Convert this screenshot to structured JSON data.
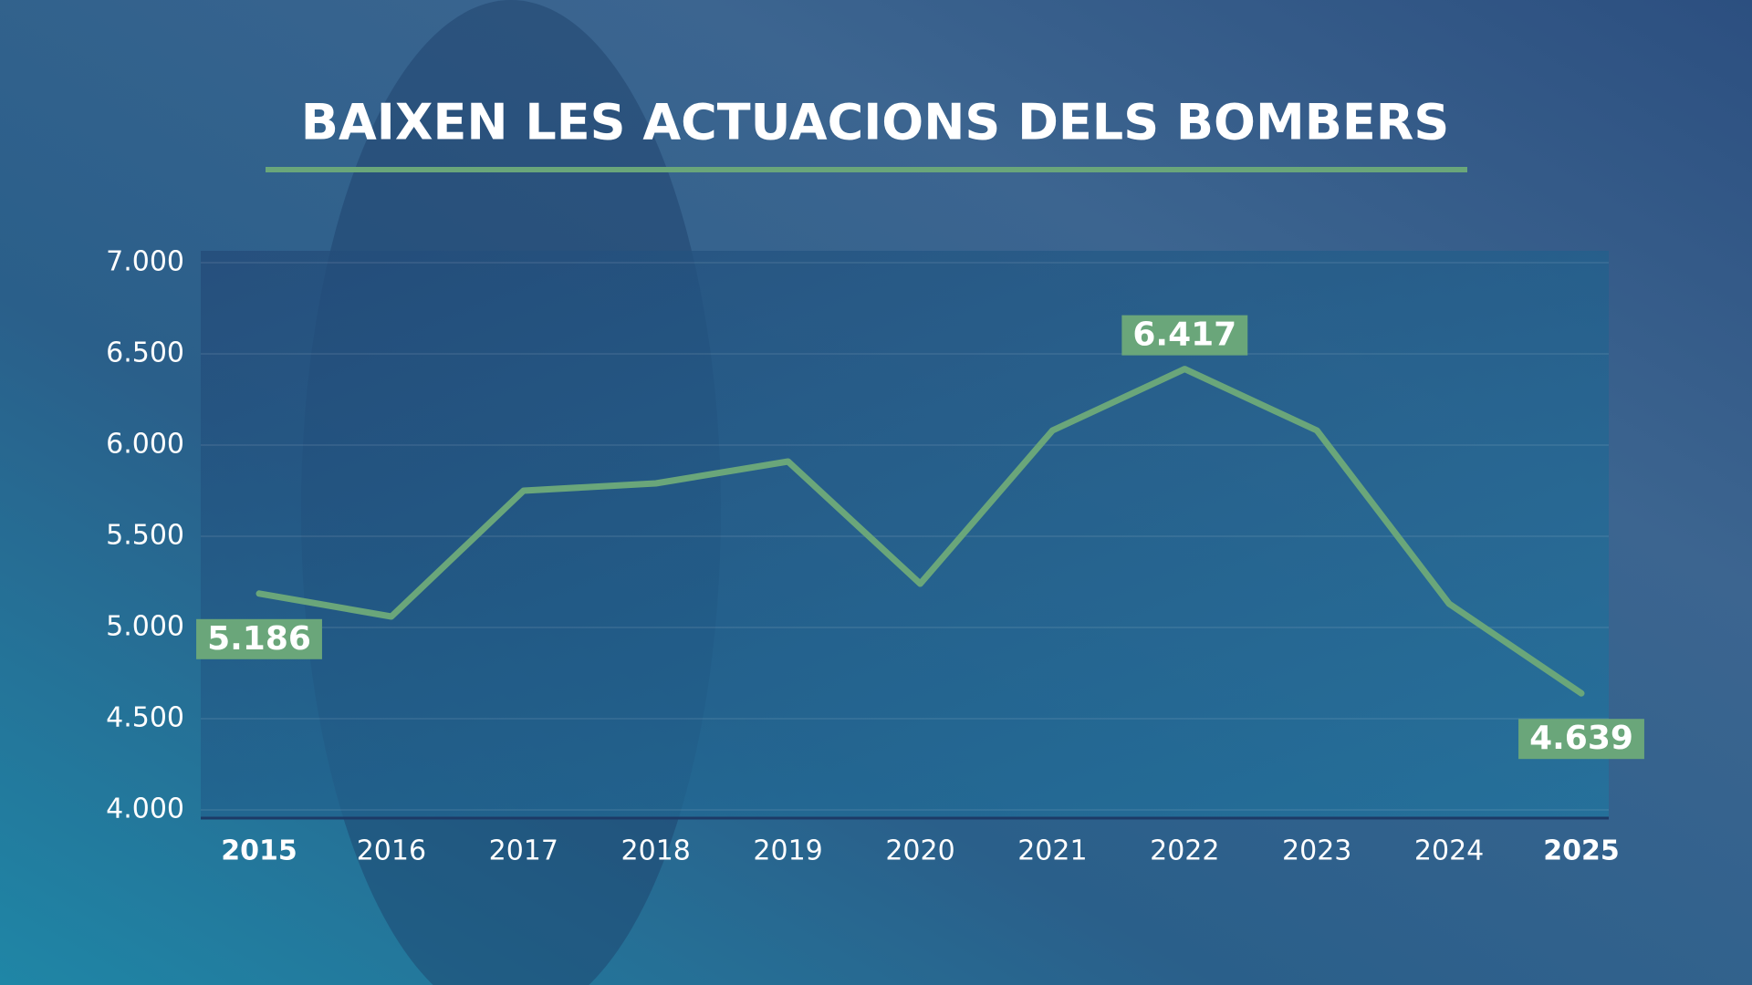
{
  "chart_data": {
    "type": "line",
    "title": "BAIXEN LES ACTUACIONS DELS BOMBERS",
    "categories": [
      "2015",
      "2016",
      "2017",
      "2018",
      "2019",
      "2020",
      "2021",
      "2022",
      "2023",
      "2024",
      "2025"
    ],
    "series": [
      {
        "color": "#6aa67a",
        "values": [
          5186,
          5060,
          5750,
          5790,
          5910,
          5240,
          6080,
          6417,
          6080,
          5130,
          4639
        ],
        "value_labels": [
          "5.186",
          null,
          null,
          null,
          null,
          null,
          null,
          "6.417",
          null,
          null,
          "4.639"
        ]
      }
    ],
    "ylim": [
      4000,
      7000
    ],
    "yticks": [
      {
        "value": 4000,
        "label": "4.000"
      },
      {
        "value": 4500,
        "label": "4.500"
      },
      {
        "value": 5000,
        "label": "5.000"
      },
      {
        "value": 5500,
        "label": "5.500"
      },
      {
        "value": 6000,
        "label": "6.000"
      },
      {
        "value": 6500,
        "label": "6.500"
      },
      {
        "value": 7000,
        "label": "7.000"
      }
    ],
    "grid": true
  }
}
